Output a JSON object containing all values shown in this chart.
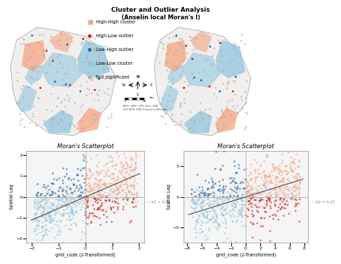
{
  "title_line1": "Cluster and Outlier Analysis",
  "title_line2": "(Anselin local Moran's I)",
  "legend_items": [
    {
      "label": "High-High cluster",
      "color": "#f4a582",
      "marker": "s"
    },
    {
      "label": "High-Low outlier",
      "color": "#d6191b",
      "marker": "o"
    },
    {
      "label": "Low-High outlier",
      "color": "#2166ac",
      "marker": "o"
    },
    {
      "label": "Low-Low cluster",
      "color": "#92c5de",
      "marker": "s"
    },
    {
      "label": "Not significant",
      "color": "#aaaaaa",
      "marker": "o"
    }
  ],
  "scatter1": {
    "title": "Moran's Scatterplot",
    "xlabel": "grid_code (z-Transformed)",
    "ylabel": "Spatial Lag",
    "xlim": [
      -2.2,
      2.2
    ],
    "ylim": [
      -2.2,
      2.2
    ],
    "xticks": [
      -2,
      -1,
      0,
      1,
      2
    ],
    "yticks": [
      -2,
      -1,
      0,
      1,
      2
    ],
    "r2": "R2 = 0.55",
    "slope": 0.55,
    "intercept": 0.0,
    "bg_color": "#f5f5f5"
  },
  "scatter2": {
    "title": "Moran's Scatterplot",
    "xlabel": "grid_code (z-Transformed)",
    "ylabel": "Spatial Lag",
    "xlim": [
      -8.5,
      8.5
    ],
    "ylim": [
      -7.5,
      7.5
    ],
    "xticks": [
      -8,
      -6,
      -4,
      -2,
      0,
      2,
      4,
      6,
      8
    ],
    "yticks": [
      -5,
      0,
      5
    ],
    "r2": "R2 = 0.37",
    "slope": 0.37,
    "intercept": 0.0,
    "bg_color": "#f5f5f5"
  },
  "colors": {
    "hh": "#f4a582",
    "hl": "#d6191b",
    "lh": "#2166ac",
    "ll": "#92c5de",
    "ns": "#aaaaaa",
    "ns_light": "#cccccc",
    "regression_line": "#555555",
    "crosshair": "#aaaaaa",
    "background": "#ffffff"
  },
  "map_bg": "#ddeeff",
  "map_border": "#cccccc"
}
